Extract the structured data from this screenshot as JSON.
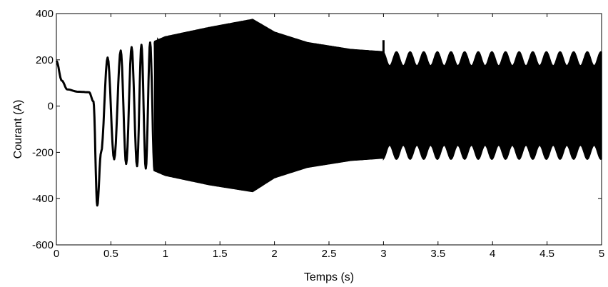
{
  "chart_data": {
    "type": "line",
    "title": "",
    "xlabel": "Temps (s)",
    "ylabel": "Courant (A)",
    "xlim": [
      0,
      5
    ],
    "ylim": [
      -600,
      400
    ],
    "xticks": [
      0,
      0.5,
      1,
      1.5,
      2,
      2.5,
      3,
      3.5,
      4,
      4.5,
      5
    ],
    "xtick_labels": [
      "0",
      "0.5",
      "1",
      "1.5",
      "2",
      "2.5",
      "3",
      "3.5",
      "4",
      "4.5",
      "5"
    ],
    "yticks": [
      -600,
      -400,
      -200,
      0,
      200,
      400
    ],
    "ytick_labels": [
      "-600",
      "-400",
      "-200",
      "0",
      "200",
      "400"
    ],
    "grid": false,
    "line_color": "#000000",
    "series": [
      {
        "values_description": "start-up phase current",
        "points": [
          {
            "x": 0.0,
            "y": 195
          },
          {
            "x": 0.05,
            "y": 110
          },
          {
            "x": 0.1,
            "y": 72
          },
          {
            "x": 0.2,
            "y": 62
          },
          {
            "x": 0.3,
            "y": 60
          },
          {
            "x": 0.34,
            "y": 20
          },
          {
            "x": 0.375,
            "y": -430
          },
          {
            "x": 0.41,
            "y": -200
          },
          {
            "x": 0.47,
            "y": 210
          },
          {
            "x": 0.53,
            "y": -230
          },
          {
            "x": 0.59,
            "y": 240
          },
          {
            "x": 0.64,
            "y": -250
          },
          {
            "x": 0.69,
            "y": 255
          },
          {
            "x": 0.74,
            "y": -260
          },
          {
            "x": 0.78,
            "y": 265
          },
          {
            "x": 0.82,
            "y": -270
          },
          {
            "x": 0.86,
            "y": 275
          },
          {
            "x": 0.9,
            "y": -280
          }
        ]
      },
      {
        "values_description": "envelope of dense oscillation",
        "upper_envelope": [
          {
            "x": 0.9,
            "y": 280
          },
          {
            "x": 1.0,
            "y": 300
          },
          {
            "x": 1.4,
            "y": 340
          },
          {
            "x": 1.8,
            "y": 375
          },
          {
            "x": 2.0,
            "y": 320
          },
          {
            "x": 2.3,
            "y": 275
          },
          {
            "x": 2.7,
            "y": 245
          },
          {
            "x": 3.0,
            "y": 235
          }
        ],
        "lower_envelope": [
          {
            "x": 0.9,
            "y": -280
          },
          {
            "x": 1.0,
            "y": -300
          },
          {
            "x": 1.4,
            "y": -340
          },
          {
            "x": 1.8,
            "y": -370
          },
          {
            "x": 2.0,
            "y": -310
          },
          {
            "x": 2.3,
            "y": -265
          },
          {
            "x": 2.7,
            "y": -235
          },
          {
            "x": 3.0,
            "y": -225
          }
        ],
        "after_3s": {
          "upper_min": 175,
          "upper_max": 235,
          "lower_min": -230,
          "lower_max": -170,
          "ripple_cycles_per_second": 8,
          "spike_at_3s": 285
        }
      }
    ]
  }
}
